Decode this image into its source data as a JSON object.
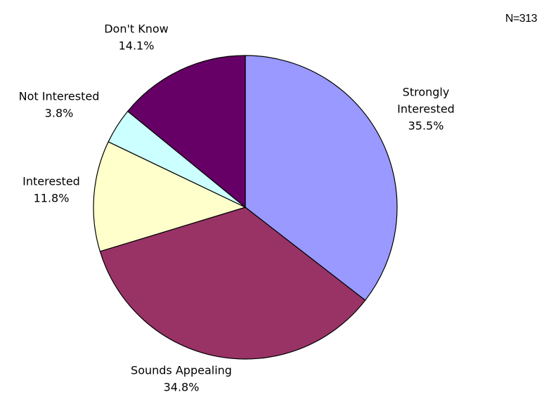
{
  "note": "N=313",
  "chart_data": {
    "type": "pie",
    "title": "",
    "slices": [
      {
        "label": [
          "Strongly",
          "Interested"
        ],
        "value": 35.5,
        "value_label": "35.5%",
        "color": "#9999ff"
      },
      {
        "label": [
          "Sounds Appealing"
        ],
        "value": 34.8,
        "value_label": "34.8%",
        "color": "#993366"
      },
      {
        "label": [
          "Interested"
        ],
        "value": 11.8,
        "value_label": "11.8%",
        "color": "#ffffcc"
      },
      {
        "label": [
          "Not Interested"
        ],
        "value": 3.8,
        "value_label": "3.8%",
        "color": "#ccffff"
      },
      {
        "label": [
          "Don't Know"
        ],
        "value": 14.1,
        "value_label": "14.1%",
        "color": "#660066"
      }
    ],
    "start_angle": "12 o'clock",
    "direction": "clockwise",
    "legend": "none"
  }
}
